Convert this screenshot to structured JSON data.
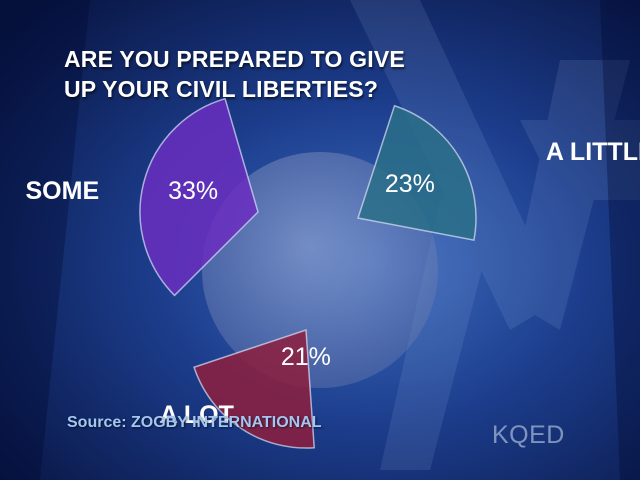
{
  "chart_data": {
    "type": "pie",
    "title": [
      "ARE YOU PREPARED TO GIVE",
      "UP YOUR CIVIL LIBERTIES?"
    ],
    "slices": [
      {
        "category": "SOME",
        "value": 33,
        "value_label": "33%",
        "color": "#6a2ec0"
      },
      {
        "category": "A LITTLE",
        "value": 23,
        "value_label": "23%",
        "color": "#2a6f87"
      },
      {
        "category": "A LOT",
        "value": 21,
        "value_label": "21%",
        "color": "#8e1f3e"
      }
    ],
    "unit": "%",
    "remainder_color": "#8792b8"
  },
  "source": "Source: ZOGBY INTERNATIONAL",
  "logo_text": "KQED",
  "colors": {
    "background": "#0b1d52",
    "source_text": "#a4c6f2"
  }
}
